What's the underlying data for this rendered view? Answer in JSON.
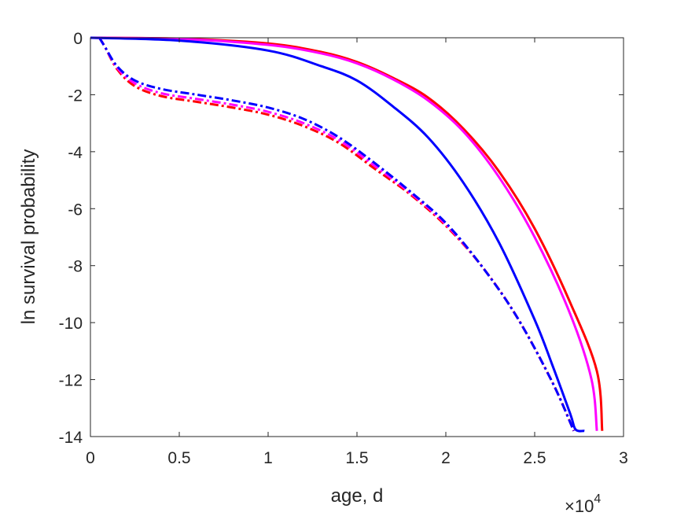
{
  "chart_data": {
    "type": "line",
    "xlabel": "age, d",
    "ylabel": "ln survival probability",
    "x_exponent": {
      "base": "×10",
      "power": "4"
    },
    "xlim": [
      0,
      3
    ],
    "ylim": [
      -14,
      0
    ],
    "xticks": [
      "0",
      "0.5",
      "1",
      "1.5",
      "2",
      "2.5",
      "3"
    ],
    "yticks": [
      "0",
      "-2",
      "-4",
      "-6",
      "-8",
      "-10",
      "-12",
      "-14"
    ],
    "grid": false,
    "series": [
      {
        "color": "#ff0000",
        "style": "solid",
        "x": [
          0,
          0.5,
          1.0,
          1.3,
          1.5,
          1.7,
          1.9,
          2.1,
          2.3,
          2.5,
          2.7,
          2.85,
          2.88
        ],
        "y": [
          0,
          -0.03,
          -0.2,
          -0.5,
          -0.85,
          -1.4,
          -2.1,
          -3.2,
          -4.7,
          -6.7,
          -9.3,
          -11.7,
          -13.8
        ]
      },
      {
        "color": "#ff00ff",
        "style": "solid",
        "x": [
          0,
          0.5,
          1.0,
          1.3,
          1.5,
          1.7,
          1.9,
          2.1,
          2.3,
          2.5,
          2.7,
          2.82,
          2.85
        ],
        "y": [
          0,
          -0.04,
          -0.25,
          -0.55,
          -0.9,
          -1.45,
          -2.2,
          -3.3,
          -4.9,
          -7.0,
          -9.7,
          -12.0,
          -13.8
        ]
      },
      {
        "color": "#0000ff",
        "style": "solid",
        "x": [
          0,
          0.5,
          1.0,
          1.3,
          1.5,
          1.7,
          1.9,
          2.1,
          2.3,
          2.5,
          2.6,
          2.7,
          2.73,
          2.78
        ],
        "y": [
          0,
          -0.1,
          -0.45,
          -1.0,
          -1.5,
          -2.4,
          -3.5,
          -5.1,
          -7.2,
          -9.9,
          -11.5,
          -13.2,
          -13.75,
          -13.8
        ]
      },
      {
        "color": "#ff0000",
        "style": "dashdot",
        "x": [
          0.05,
          0.08,
          0.15,
          0.25,
          0.4,
          0.6,
          0.8,
          1.0,
          1.2,
          1.4,
          1.6,
          1.8,
          2.0,
          2.2,
          2.4,
          2.6,
          2.72
        ],
        "y": [
          0,
          -0.3,
          -1.1,
          -1.7,
          -2.05,
          -2.25,
          -2.45,
          -2.7,
          -3.1,
          -3.7,
          -4.6,
          -5.5,
          -6.6,
          -8.0,
          -9.8,
          -12.1,
          -13.8
        ]
      },
      {
        "color": "#ff00ff",
        "style": "dashdot",
        "x": [
          0.05,
          0.08,
          0.15,
          0.25,
          0.4,
          0.6,
          0.8,
          1.0,
          1.2,
          1.4,
          1.6,
          1.8,
          2.0,
          2.2,
          2.4,
          2.6,
          2.72
        ],
        "y": [
          0,
          -0.3,
          -1.05,
          -1.6,
          -1.95,
          -2.15,
          -2.35,
          -2.6,
          -3.0,
          -3.6,
          -4.5,
          -5.45,
          -6.55,
          -8.0,
          -9.8,
          -12.1,
          -13.8
        ]
      },
      {
        "color": "#0000ff",
        "style": "dashdot",
        "x": [
          0.05,
          0.08,
          0.15,
          0.25,
          0.4,
          0.6,
          0.8,
          1.0,
          1.2,
          1.4,
          1.6,
          1.8,
          2.0,
          2.2,
          2.4,
          2.6,
          2.72
        ],
        "y": [
          0,
          -0.3,
          -1.0,
          -1.5,
          -1.8,
          -2.0,
          -2.2,
          -2.45,
          -2.85,
          -3.5,
          -4.4,
          -5.4,
          -6.5,
          -8.0,
          -9.8,
          -12.1,
          -13.8
        ]
      }
    ]
  }
}
